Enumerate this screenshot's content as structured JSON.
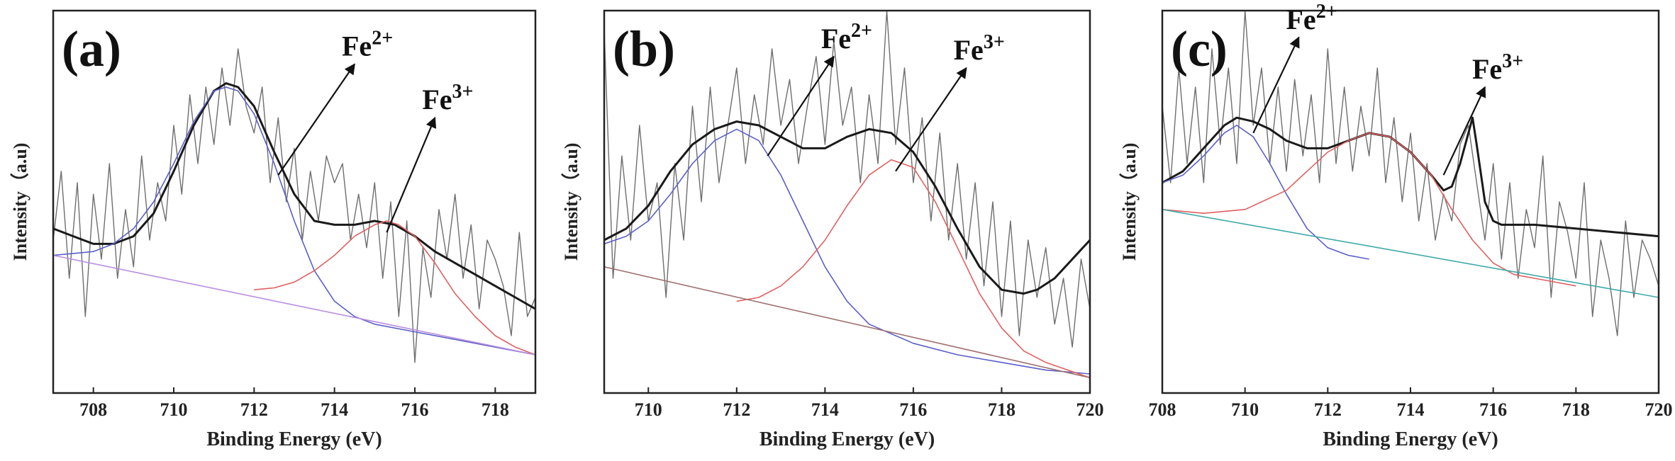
{
  "chart_data": [
    {
      "type": "line",
      "panel_label": "(a)",
      "xlabel": "Binding Energy (eV)",
      "ylabel": "Intensity（a.u)",
      "xlim": [
        707,
        719
      ],
      "ylim": [
        0,
        100
      ],
      "xticks": [
        "708",
        "710",
        "712",
        "714",
        "716",
        "718"
      ],
      "xtick_values": [
        708,
        710,
        712,
        714,
        716,
        718
      ],
      "annotations": [
        {
          "base": "Fe",
          "sup": "2+",
          "from": [
            712.6,
            57
          ],
          "to": [
            714.5,
            86
          ]
        },
        {
          "base": "Fe",
          "sup": "3+",
          "from": [
            715.3,
            42
          ],
          "to": [
            716.5,
            72
          ]
        }
      ],
      "series": [
        {
          "role": "raw",
          "color": "#6e6e6e",
          "x": [
            707.0,
            707.2,
            707.4,
            707.6,
            707.8,
            708.0,
            708.2,
            708.4,
            708.6,
            708.8,
            709.0,
            709.2,
            709.4,
            709.6,
            709.8,
            710.0,
            710.2,
            710.4,
            710.6,
            710.8,
            711.0,
            711.2,
            711.4,
            711.6,
            711.8,
            712.0,
            712.2,
            712.4,
            712.6,
            712.8,
            713.0,
            713.2,
            713.4,
            713.6,
            713.8,
            714.0,
            714.2,
            714.4,
            714.6,
            714.8,
            715.0,
            715.2,
            715.4,
            715.6,
            715.8,
            716.0,
            716.2,
            716.4,
            716.6,
            716.8,
            717.0,
            717.2,
            717.4,
            717.6,
            717.8,
            718.0,
            718.2,
            718.4,
            718.6,
            718.8,
            719.0
          ],
          "values": [
            40,
            58,
            30,
            55,
            20,
            52,
            35,
            60,
            30,
            48,
            33,
            62,
            40,
            55,
            45,
            70,
            52,
            78,
            60,
            80,
            65,
            85,
            70,
            90,
            75,
            68,
            80,
            55,
            72,
            50,
            64,
            40,
            58,
            45,
            62,
            55,
            60,
            40,
            52,
            38,
            55,
            30,
            50,
            20,
            45,
            8,
            38,
            25,
            48,
            35,
            52,
            30,
            44,
            22,
            40,
            35,
            28,
            15,
            42,
            20,
            25
          ]
        },
        {
          "role": "envelope",
          "color": "#1a1a1a",
          "x": [
            707.0,
            707.5,
            708.0,
            708.5,
            709.0,
            709.5,
            710.0,
            710.5,
            711.0,
            711.3,
            711.6,
            712.0,
            712.5,
            713.0,
            713.5,
            714.0,
            714.5,
            715.0,
            715.5,
            716.0,
            716.5,
            717.0,
            717.5,
            718.0,
            718.5,
            719.0
          ],
          "values": [
            43,
            41,
            39,
            39,
            41,
            47,
            58,
            70,
            79,
            81,
            80,
            75,
            63,
            52,
            45,
            44,
            44,
            45,
            44,
            41,
            37,
            34,
            31,
            28,
            25,
            22
          ]
        },
        {
          "role": "fit Fe2+",
          "color": "#5b5fc7",
          "x": [
            707.0,
            707.5,
            708.0,
            708.5,
            709.0,
            709.5,
            710.0,
            710.5,
            711.0,
            711.3,
            711.6,
            712.0,
            712.5,
            713.0,
            713.5,
            714.0,
            714.5,
            715.0,
            716.0,
            717.0,
            718.0,
            719.0
          ],
          "values": [
            36,
            36.5,
            37,
            39,
            43,
            50,
            60,
            71,
            79,
            80,
            79,
            73,
            60,
            45,
            32,
            24,
            20,
            18,
            16,
            14,
            12,
            10
          ]
        },
        {
          "role": "fit Fe3+",
          "color": "#e06060",
          "x": [
            712.0,
            712.5,
            713.0,
            713.5,
            714.0,
            714.5,
            715.0,
            715.3,
            715.6,
            716.0,
            716.5,
            717.0,
            717.5,
            718.0,
            718.5,
            719.0
          ],
          "values": [
            27,
            27.5,
            29,
            32,
            36,
            41,
            44,
            45,
            44,
            41,
            34,
            26,
            20,
            15,
            12,
            10
          ]
        },
        {
          "role": "baseline",
          "color": "#b98ee0",
          "x": [
            707.0,
            719.0
          ],
          "values": [
            36,
            10
          ]
        }
      ]
    },
    {
      "type": "line",
      "panel_label": "(b)",
      "xlabel": "Binding Energy (eV)",
      "ylabel": "Intensity（a.u)",
      "xlim": [
        709,
        720
      ],
      "ylim": [
        0,
        100
      ],
      "xticks": [
        "710",
        "712",
        "714",
        "716",
        "718",
        "720"
      ],
      "xtick_values": [
        710,
        712,
        714,
        716,
        718,
        720
      ],
      "annotations": [
        {
          "base": "Fe",
          "sup": "2+",
          "from": [
            712.7,
            62
          ],
          "to": [
            714.2,
            88
          ]
        },
        {
          "base": "Fe",
          "sup": "3+",
          "from": [
            715.6,
            58
          ],
          "to": [
            717.2,
            85
          ]
        }
      ],
      "series": [
        {
          "role": "raw",
          "color": "#6e6e6e",
          "x": [
            709.0,
            709.2,
            709.4,
            709.6,
            709.8,
            710.0,
            710.2,
            710.4,
            710.6,
            710.8,
            711.0,
            711.2,
            711.4,
            711.6,
            711.8,
            712.0,
            712.2,
            712.4,
            712.6,
            712.8,
            713.0,
            713.2,
            713.4,
            713.6,
            713.8,
            714.0,
            714.2,
            714.4,
            714.6,
            714.8,
            715.0,
            715.2,
            715.4,
            715.6,
            715.8,
            716.0,
            716.2,
            716.4,
            716.6,
            716.8,
            717.0,
            717.2,
            717.4,
            717.6,
            717.8,
            718.0,
            718.2,
            718.4,
            718.6,
            718.8,
            719.0,
            719.2,
            719.4,
            719.6,
            719.8,
            720.0
          ],
          "values": [
            95,
            30,
            62,
            40,
            70,
            45,
            55,
            25,
            60,
            40,
            75,
            50,
            80,
            55,
            70,
            85,
            60,
            78,
            65,
            90,
            70,
            82,
            60,
            75,
            88,
            65,
            92,
            70,
            80,
            55,
            78,
            60,
            100,
            65,
            85,
            55,
            72,
            45,
            68,
            40,
            60,
            35,
            55,
            28,
            50,
            20,
            45,
            15,
            40,
            25,
            38,
            18,
            30,
            12,
            35,
            22
          ]
        },
        {
          "role": "envelope",
          "color": "#1a1a1a",
          "x": [
            709.0,
            709.5,
            710.0,
            710.5,
            711.0,
            711.5,
            712.0,
            712.5,
            713.0,
            713.5,
            714.0,
            714.5,
            715.0,
            715.5,
            716.0,
            716.5,
            717.0,
            717.5,
            718.0,
            718.5,
            718.8,
            719.2,
            719.6,
            720.0
          ],
          "values": [
            40,
            43,
            49,
            58,
            65,
            69,
            71,
            70,
            67,
            64,
            64,
            67,
            69,
            68,
            63,
            54,
            43,
            33,
            27,
            26,
            27,
            30,
            35,
            40
          ]
        },
        {
          "role": "fit Fe2+",
          "color": "#5b5fc7",
          "x": [
            709.0,
            709.5,
            710.0,
            710.5,
            711.0,
            711.5,
            712.0,
            712.5,
            713.0,
            713.5,
            714.0,
            714.5,
            715.0,
            716.0,
            717.0,
            718.0,
            719.0,
            720.0
          ],
          "values": [
            39,
            41,
            45,
            52,
            60,
            66,
            69,
            66,
            57,
            45,
            33,
            24,
            18,
            13,
            10,
            8,
            6,
            5
          ]
        },
        {
          "role": "fit Fe3+",
          "color": "#e06060",
          "x": [
            712.0,
            712.5,
            713.0,
            713.5,
            714.0,
            714.5,
            715.0,
            715.5,
            716.0,
            716.5,
            717.0,
            717.5,
            718.0,
            718.5,
            719.0,
            719.5,
            720.0
          ],
          "values": [
            24,
            25,
            28,
            33,
            40,
            49,
            57,
            61,
            59,
            50,
            38,
            26,
            17,
            11,
            8,
            6,
            4
          ]
        },
        {
          "role": "baseline",
          "color": "#a07070",
          "x": [
            709.0,
            720.0
          ],
          "values": [
            33,
            4
          ]
        }
      ]
    },
    {
      "type": "line",
      "panel_label": "(c)",
      "xlabel": "Binding Energy (eV)",
      "ylabel": "Intensity（a.u)",
      "xlim": [
        708,
        720
      ],
      "ylim": [
        0,
        100
      ],
      "xticks": [
        "708",
        "710",
        "712",
        "714",
        "716",
        "718",
        "720"
      ],
      "xtick_values": [
        708,
        710,
        712,
        714,
        716,
        718,
        720
      ],
      "annotations": [
        {
          "base": "Fe",
          "sup": "2+",
          "from": [
            710.2,
            68
          ],
          "to": [
            711.3,
            93
          ]
        },
        {
          "base": "Fe",
          "sup": "3+",
          "from": [
            714.8,
            57
          ],
          "to": [
            715.8,
            80
          ]
        }
      ],
      "series": [
        {
          "role": "raw",
          "color": "#6e6e6e",
          "x": [
            708.0,
            708.2,
            708.4,
            708.6,
            708.8,
            709.0,
            709.2,
            709.4,
            709.6,
            709.8,
            710.0,
            710.2,
            710.4,
            710.6,
            710.8,
            711.0,
            711.2,
            711.4,
            711.6,
            711.8,
            712.0,
            712.2,
            712.4,
            712.6,
            712.8,
            713.0,
            713.2,
            713.4,
            713.6,
            713.8,
            714.0,
            714.2,
            714.4,
            714.6,
            714.8,
            715.0,
            715.2,
            715.4,
            715.6,
            715.8,
            716.0,
            716.2,
            716.4,
            716.6,
            716.8,
            717.0,
            717.2,
            717.4,
            717.6,
            717.8,
            718.0,
            718.2,
            718.4,
            718.6,
            718.8,
            719.0,
            719.2,
            719.4,
            719.6,
            719.8,
            720.0
          ],
          "values": [
            75,
            55,
            85,
            60,
            80,
            55,
            90,
            65,
            85,
            60,
            100,
            70,
            85,
            60,
            80,
            58,
            82,
            62,
            78,
            55,
            90,
            60,
            80,
            58,
            75,
            62,
            85,
            55,
            72,
            50,
            68,
            45,
            60,
            40,
            52,
            45,
            65,
            70,
            55,
            40,
            60,
            35,
            55,
            30,
            48,
            38,
            62,
            25,
            50,
            42,
            30,
            55,
            20,
            40,
            30,
            15,
            45,
            25,
            40,
            35,
            28
          ]
        },
        {
          "role": "envelope",
          "color": "#1a1a1a",
          "x": [
            708.0,
            708.5,
            709.0,
            709.5,
            709.8,
            710.2,
            710.6,
            711.0,
            711.5,
            712.0,
            712.5,
            713.0,
            713.5,
            714.0,
            714.5,
            714.8,
            715.0,
            715.2,
            715.4,
            715.5,
            715.6,
            715.8,
            716.0,
            716.2,
            716.5,
            717.0,
            718.0,
            719.0,
            720.0
          ],
          "values": [
            55,
            58,
            64,
            70,
            72,
            71,
            69,
            66,
            64,
            64,
            66,
            68,
            67,
            63,
            57,
            53,
            54,
            60,
            68,
            72,
            65,
            50,
            45,
            44,
            44,
            44,
            43,
            42,
            41
          ]
        },
        {
          "role": "fit Fe2+",
          "color": "#5b5fc7",
          "x": [
            708.0,
            708.5,
            709.0,
            709.5,
            709.8,
            710.2,
            710.6,
            711.0,
            711.5,
            712.0,
            712.5,
            713.0
          ],
          "values": [
            55,
            57,
            62,
            68,
            70,
            67,
            60,
            52,
            43,
            38,
            36,
            35
          ]
        },
        {
          "role": "fit Fe3+",
          "color": "#e06060",
          "x": [
            708.0,
            709.0,
            710.0,
            711.0,
            711.5,
            712.0,
            712.5,
            713.0,
            713.5,
            714.0,
            714.5,
            715.0,
            715.5,
            716.0,
            716.5,
            717.0,
            717.5,
            718.0
          ],
          "values": [
            48,
            47,
            48,
            53,
            58,
            63,
            66,
            68,
            67,
            63,
            57,
            48,
            40,
            34,
            31,
            30,
            29,
            28
          ]
        },
        {
          "role": "baseline",
          "color": "#3fa9a9",
          "x": [
            708.0,
            720.0
          ],
          "values": [
            48,
            25
          ]
        }
      ]
    }
  ]
}
